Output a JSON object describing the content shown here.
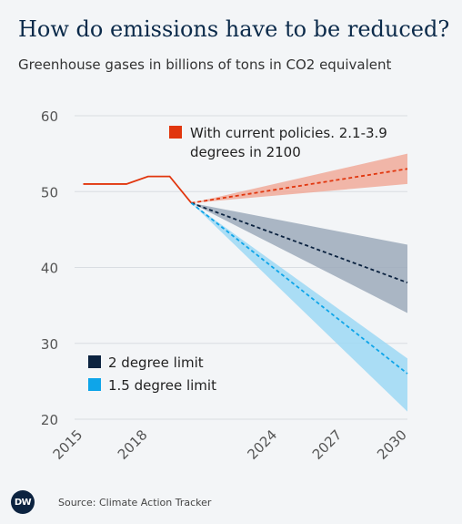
{
  "header": {
    "title": "How do emissions have to be reduced?",
    "subtitle": "Greenhouse gases in billions of tons in CO2 equivalent"
  },
  "footer": {
    "logo_text": "DW",
    "source": "Source: Climate Action Tracker"
  },
  "chart_data": {
    "type": "line",
    "xlim": [
      2014.6,
      2030
    ],
    "ylim": [
      20,
      60
    ],
    "yticks": [
      20,
      30,
      40,
      50,
      60
    ],
    "xtick_labels": [
      "2015",
      "2018",
      "2024",
      "2027",
      "2030"
    ],
    "xticks": [
      2015,
      2018,
      2024,
      2027,
      2030
    ],
    "grid": true,
    "historical": {
      "x": [
        2015,
        2016,
        2017,
        2018,
        2019,
        2020
      ],
      "y": [
        51,
        51,
        51,
        52,
        52,
        48.5
      ],
      "color": "#e1360e"
    },
    "series": [
      {
        "name": "With current policies. 2.1-3.9 degrees in 2100",
        "color": "#e1360e",
        "band_color": "#f0aa9a",
        "x": [
          2020,
          2030
        ],
        "y": [
          48.5,
          53
        ],
        "lower": [
          48.5,
          51
        ],
        "upper": [
          48.5,
          55
        ]
      },
      {
        "name": "2 degree limit",
        "color": "#0c2340",
        "band_color": "#9caabb",
        "x": [
          2020,
          2030
        ],
        "y": [
          48.5,
          38
        ],
        "lower": [
          48.5,
          34
        ],
        "upper": [
          48.5,
          43
        ]
      },
      {
        "name": "1.5 degree limit",
        "color": "#0ea5e9",
        "band_color": "#9cd8f5",
        "x": [
          2020,
          2030
        ],
        "y": [
          48.5,
          26
        ],
        "lower": [
          48.5,
          21
        ],
        "upper": [
          48.5,
          28
        ]
      }
    ],
    "legend": [
      {
        "label": "With current policies. 2.1-3.9",
        "label2": "degrees in 2100",
        "color": "#e1360e",
        "position": "top-center"
      },
      {
        "label": "2 degree limit",
        "color": "#0c2340",
        "position": "bottom-left"
      },
      {
        "label": "1.5 degree limit",
        "color": "#0ea5e9",
        "position": "bottom-left"
      }
    ]
  }
}
